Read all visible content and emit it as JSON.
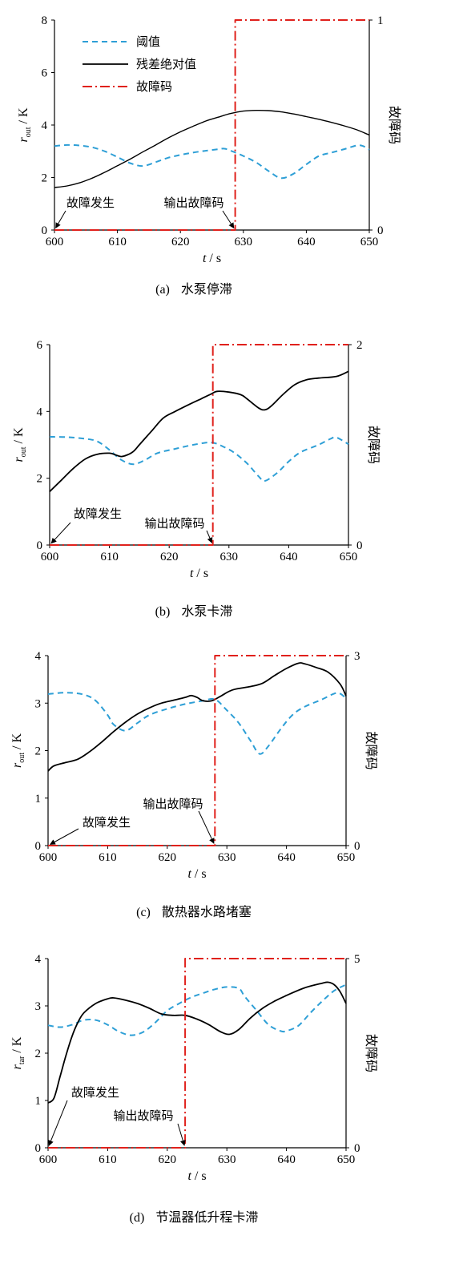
{
  "chart_data": [
    {
      "type": "line",
      "panel_label": "(a)",
      "title": "水泵停滞",
      "xlabel_symbol": "t",
      "xlabel_unit": " / s",
      "ylabel_symbol": "r",
      "ylabel_subscript": "out",
      "ylabel_unit": " / K",
      "y2label": "故障码",
      "xlim": [
        600,
        650
      ],
      "xticks": [
        600,
        610,
        620,
        630,
        640,
        650
      ],
      "ylim": [
        0,
        8
      ],
      "yticks": [
        0,
        2,
        4,
        6,
        8
      ],
      "y2lim": [
        0,
        1
      ],
      "y2ticks": [
        0,
        1
      ],
      "grid": false,
      "legend": {
        "position": "top-left"
      },
      "series": [
        {
          "name": "阈值",
          "axis": "left",
          "style": "dashed",
          "color": "#2e9fd6",
          "x": [
            600,
            602,
            604,
            606,
            608,
            610,
            612,
            614,
            616,
            618,
            620,
            622,
            624,
            626,
            627,
            628,
            630,
            632,
            634,
            636,
            638,
            640,
            642,
            644,
            646,
            648,
            649,
            650
          ],
          "y": [
            3.2,
            3.24,
            3.22,
            3.15,
            3.0,
            2.78,
            2.55,
            2.44,
            2.58,
            2.75,
            2.86,
            2.95,
            3.02,
            3.08,
            3.1,
            3.02,
            2.82,
            2.58,
            2.25,
            1.98,
            2.15,
            2.5,
            2.82,
            2.95,
            3.08,
            3.22,
            3.2,
            3.06
          ]
        },
        {
          "name": "残差绝对值",
          "axis": "left",
          "style": "solid",
          "color": "#000000",
          "x": [
            600,
            602,
            604,
            606,
            608,
            610,
            612,
            614,
            616,
            618,
            620,
            622,
            624,
            626,
            628,
            630,
            632,
            634,
            636,
            638,
            640,
            642,
            644,
            646,
            648,
            650
          ],
          "y": [
            1.62,
            1.68,
            1.8,
            1.98,
            2.2,
            2.45,
            2.7,
            2.97,
            3.23,
            3.5,
            3.74,
            3.95,
            4.15,
            4.3,
            4.44,
            4.53,
            4.56,
            4.55,
            4.5,
            4.42,
            4.32,
            4.22,
            4.1,
            3.97,
            3.82,
            3.62
          ]
        },
        {
          "name": "故障码",
          "axis": "right",
          "style": "dash-dot",
          "color": "#e0211c",
          "x": [
            600,
            628.7,
            628.7,
            650
          ],
          "y": [
            0,
            0,
            1,
            1
          ]
        }
      ],
      "annotations": [
        {
          "text": "故障发生",
          "x": 600,
          "y": 0
        },
        {
          "text": "输出故障码",
          "x": 628.7,
          "y": 0
        }
      ]
    },
    {
      "type": "line",
      "panel_label": "(b)",
      "title": "水泵卡滞",
      "xlabel_symbol": "t",
      "xlabel_unit": " / s",
      "ylabel_symbol": "r",
      "ylabel_subscript": "out",
      "ylabel_unit": " / K",
      "y2label": "故障码",
      "xlim": [
        600,
        650
      ],
      "xticks": [
        600,
        610,
        620,
        630,
        640,
        650
      ],
      "ylim": [
        0,
        6
      ],
      "yticks": [
        0,
        2,
        4,
        6
      ],
      "y2lim": [
        0,
        2
      ],
      "y2ticks": [
        0,
        2
      ],
      "grid": false,
      "series": [
        {
          "axis": "left",
          "style": "dashed",
          "color": "#2e9fd6",
          "x": [
            600,
            603,
            606,
            608,
            610,
            612,
            614,
            616,
            618,
            621,
            624,
            627,
            629,
            631,
            633,
            635,
            636,
            638,
            640,
            642,
            645,
            647,
            648,
            650
          ],
          "y": [
            3.24,
            3.23,
            3.18,
            3.1,
            2.85,
            2.55,
            2.42,
            2.55,
            2.75,
            2.88,
            3.0,
            3.07,
            2.95,
            2.75,
            2.45,
            2.05,
            1.92,
            2.15,
            2.5,
            2.78,
            3.0,
            3.18,
            3.22,
            3.02
          ]
        },
        {
          "axis": "left",
          "style": "solid",
          "color": "#000000",
          "x": [
            600,
            602,
            604,
            606,
            608,
            610,
            611,
            612,
            613,
            614,
            615,
            617,
            619,
            621,
            623,
            625,
            627,
            628,
            630,
            632,
            633,
            635,
            636,
            637,
            639,
            641,
            643,
            645,
            648,
            650
          ],
          "y": [
            1.6,
            1.95,
            2.3,
            2.58,
            2.72,
            2.75,
            2.7,
            2.65,
            2.7,
            2.8,
            3.0,
            3.4,
            3.8,
            4.0,
            4.18,
            4.35,
            4.52,
            4.6,
            4.58,
            4.5,
            4.38,
            4.1,
            4.05,
            4.15,
            4.5,
            4.8,
            4.95,
            5.0,
            5.05,
            5.2
          ]
        },
        {
          "axis": "right",
          "style": "dash-dot",
          "color": "#e0211c",
          "x": [
            600,
            627.3,
            627.3,
            650
          ],
          "y": [
            0,
            0,
            2,
            2
          ]
        }
      ],
      "annotations": [
        {
          "text": "故障发生",
          "x": 600,
          "y": 0
        },
        {
          "text": "输出故障码",
          "x": 627.3,
          "y": 0
        }
      ]
    },
    {
      "type": "line",
      "panel_label": "(c)",
      "title": "散热器水路堵塞",
      "xlabel_symbol": "t",
      "xlabel_unit": " / s",
      "ylabel_symbol": "r",
      "ylabel_subscript": "out",
      "ylabel_unit": " / K",
      "y2label": "故障码",
      "xlim": [
        600,
        650
      ],
      "xticks": [
        600,
        610,
        620,
        630,
        640,
        650
      ],
      "ylim": [
        0,
        4
      ],
      "yticks": [
        0,
        1,
        2,
        3,
        4
      ],
      "y2lim": [
        0,
        3
      ],
      "y2ticks": [
        0,
        3
      ],
      "grid": false,
      "series": [
        {
          "axis": "left",
          "style": "dashed",
          "color": "#2e9fd6",
          "x": [
            600,
            603,
            606,
            608,
            610,
            611,
            613,
            615,
            617,
            620,
            623,
            626,
            628,
            630,
            632,
            634,
            635.5,
            637,
            639,
            641,
            643,
            646,
            648,
            649,
            650
          ],
          "y": [
            3.19,
            3.22,
            3.18,
            3.05,
            2.75,
            2.55,
            2.42,
            2.58,
            2.75,
            2.88,
            2.98,
            3.05,
            3.08,
            2.85,
            2.58,
            2.2,
            1.93,
            2.1,
            2.45,
            2.75,
            2.92,
            3.08,
            3.2,
            3.2,
            3.1
          ]
        },
        {
          "axis": "left",
          "style": "solid",
          "color": "#000000",
          "x": [
            600,
            601,
            603,
            605,
            607,
            609,
            611,
            613,
            615,
            617,
            619,
            621,
            623,
            624,
            625,
            626,
            627.5,
            629,
            631,
            634,
            636,
            638,
            640,
            642,
            643,
            645,
            647,
            649,
            650
          ],
          "y": [
            1.57,
            1.68,
            1.75,
            1.82,
            1.98,
            2.18,
            2.4,
            2.6,
            2.77,
            2.9,
            3.0,
            3.06,
            3.12,
            3.16,
            3.12,
            3.05,
            3.05,
            3.15,
            3.28,
            3.35,
            3.42,
            3.58,
            3.73,
            3.84,
            3.83,
            3.75,
            3.65,
            3.4,
            3.15
          ]
        },
        {
          "axis": "right",
          "style": "dash-dot",
          "color": "#e0211c",
          "x": [
            600,
            628,
            628,
            650
          ],
          "y": [
            0,
            0,
            3,
            3
          ]
        }
      ],
      "annotations": [
        {
          "text": "故障发生",
          "x": 600,
          "y": 0
        },
        {
          "text": "输出故障码",
          "x": 628,
          "y": 0
        }
      ]
    },
    {
      "type": "line",
      "panel_label": "(d)",
      "title": "节温器低升程卡滞",
      "xlabel_symbol": "t",
      "xlabel_unit": " / s",
      "ylabel_symbol": "r",
      "ylabel_subscript": "tar",
      "ylabel_unit": " / K",
      "y2label": "故障码",
      "xlim": [
        600,
        650
      ],
      "xticks": [
        600,
        610,
        620,
        630,
        640,
        650
      ],
      "ylim": [
        0,
        4
      ],
      "yticks": [
        0,
        1,
        2,
        3,
        4
      ],
      "y2lim": [
        0,
        5
      ],
      "y2ticks": [
        0,
        5
      ],
      "grid": false,
      "series": [
        {
          "axis": "left",
          "style": "dashed",
          "color": "#2e9fd6",
          "x": [
            600,
            602,
            604,
            606,
            608,
            610,
            612,
            614,
            616,
            618,
            620,
            622,
            624,
            626,
            628,
            630,
            632,
            633,
            635,
            637,
            639,
            640,
            642,
            644,
            646,
            648,
            650
          ],
          "y": [
            2.59,
            2.55,
            2.6,
            2.7,
            2.7,
            2.6,
            2.45,
            2.38,
            2.45,
            2.65,
            2.9,
            3.05,
            3.18,
            3.27,
            3.35,
            3.4,
            3.37,
            3.2,
            2.9,
            2.6,
            2.47,
            2.47,
            2.58,
            2.85,
            3.1,
            3.32,
            3.45
          ]
        },
        {
          "axis": "left",
          "style": "solid",
          "color": "#000000",
          "x": [
            600,
            601,
            602,
            603,
            604,
            605,
            606,
            608,
            610,
            611,
            613,
            615,
            617,
            619,
            621,
            623,
            625,
            627,
            629,
            630.5,
            632,
            634,
            636,
            638,
            640,
            643,
            646,
            647,
            648,
            649,
            650
          ],
          "y": [
            0.95,
            1.05,
            1.5,
            1.95,
            2.35,
            2.65,
            2.85,
            3.05,
            3.15,
            3.17,
            3.12,
            3.05,
            2.95,
            2.83,
            2.8,
            2.8,
            2.72,
            2.6,
            2.45,
            2.4,
            2.5,
            2.75,
            2.95,
            3.1,
            3.22,
            3.38,
            3.48,
            3.5,
            3.45,
            3.3,
            3.05
          ]
        },
        {
          "axis": "right",
          "style": "dash-dot",
          "color": "#e0211c",
          "x": [
            600,
            623,
            623,
            650
          ],
          "y": [
            0,
            0,
            5,
            5
          ]
        }
      ],
      "annotations": [
        {
          "text": "故障发生",
          "x": 600,
          "y": 0
        },
        {
          "text": "输出故障码",
          "x": 623,
          "y": 0
        }
      ]
    }
  ]
}
